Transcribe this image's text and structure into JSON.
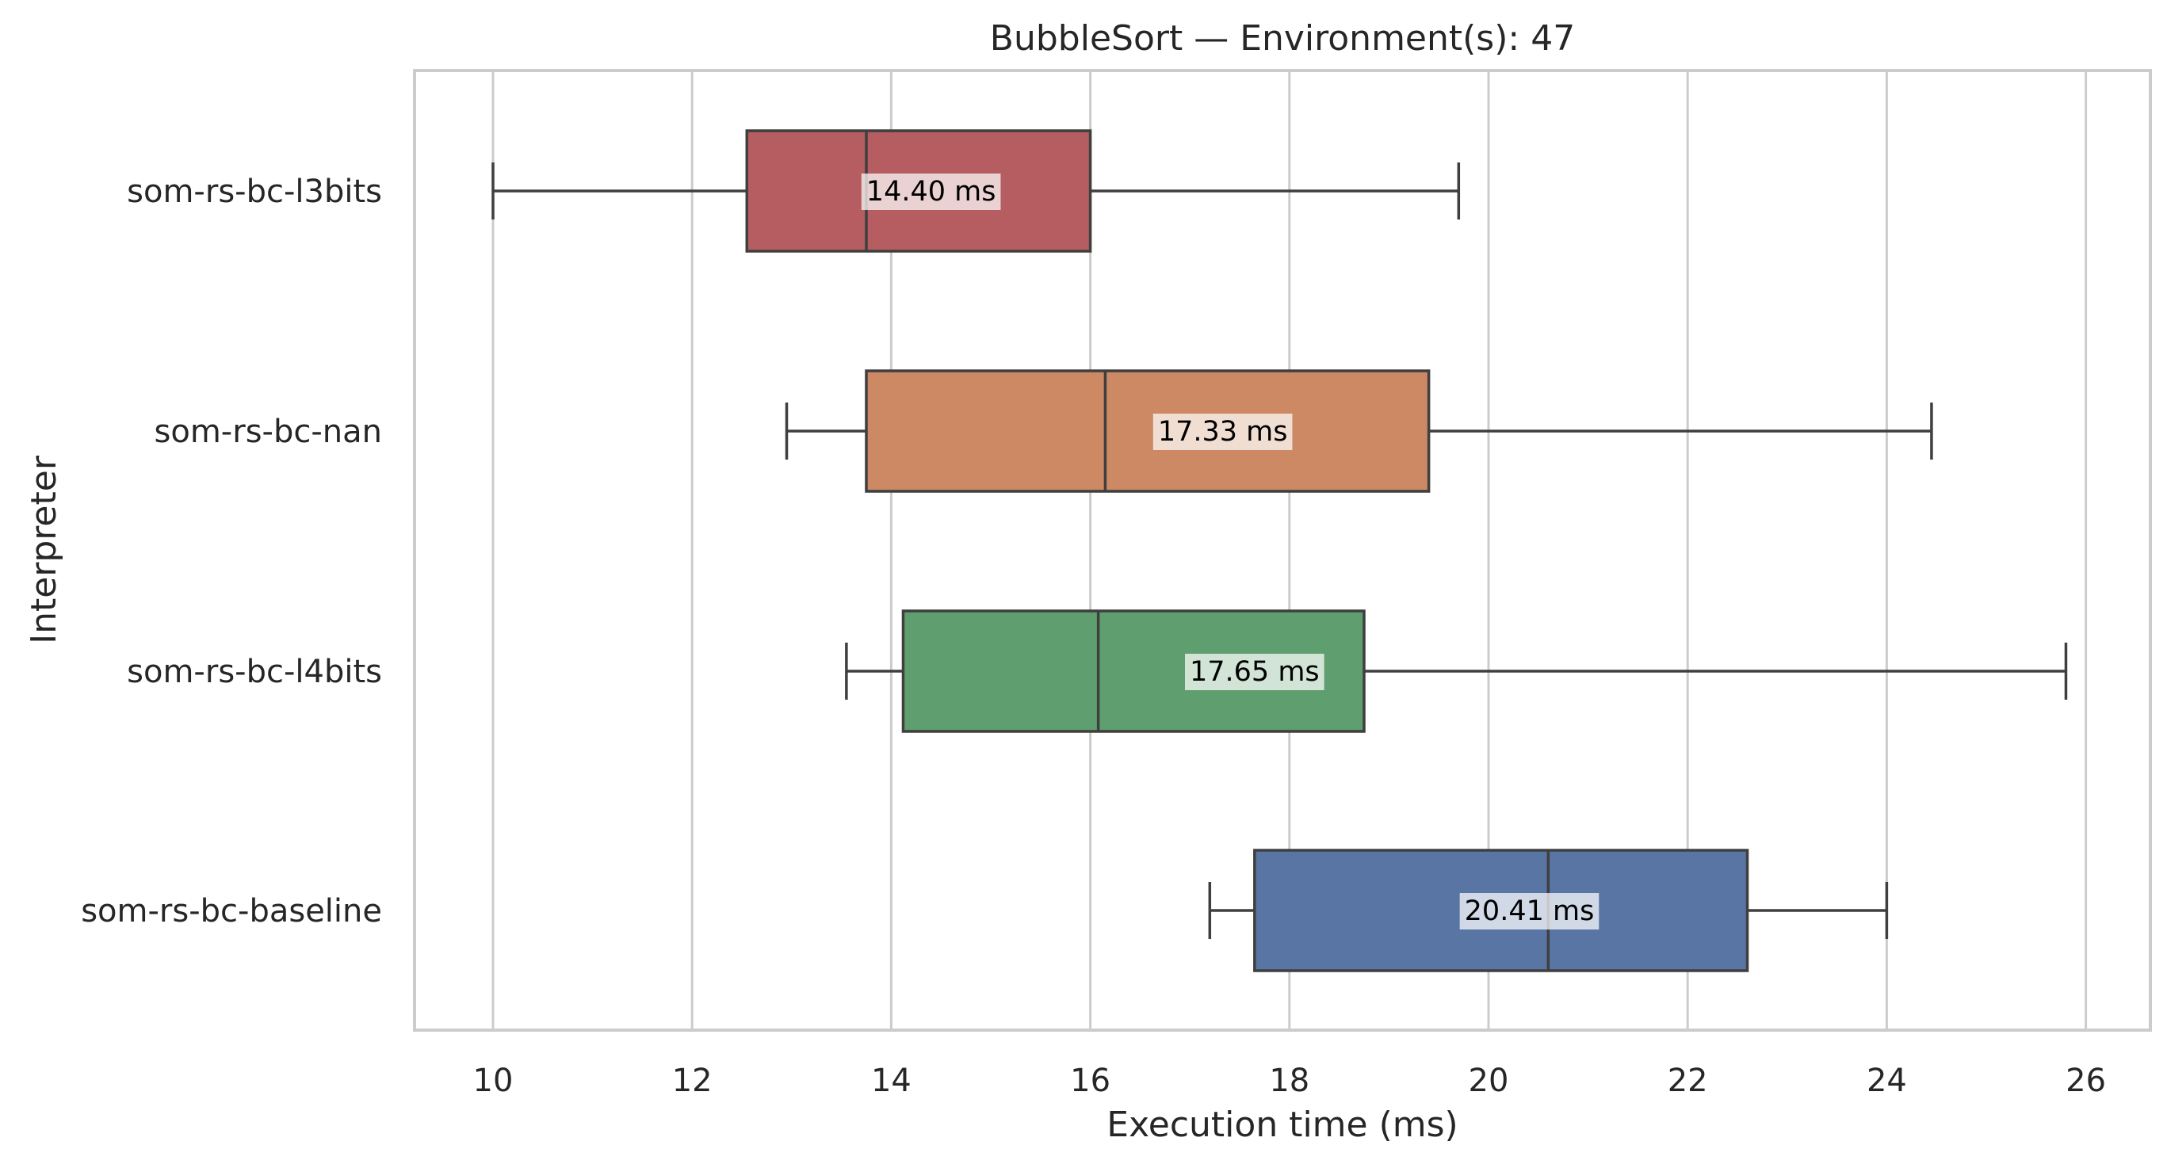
{
  "chart_data": {
    "type": "boxplot",
    "orientation": "horizontal",
    "title": "BubbleSort — Environment(s): 47",
    "xlabel": "Execution time (ms)",
    "ylabel": "Interpreter",
    "xlim": [
      9.2,
      26.6
    ],
    "xticks": [
      10,
      12,
      14,
      16,
      18,
      20,
      22,
      24,
      26
    ],
    "grid": "vertical",
    "series": [
      {
        "name": "som-rs-bc-l3bits",
        "color": "#b55d60",
        "whisker_low": 10.0,
        "q1": 12.55,
        "median": 13.75,
        "q3": 16.0,
        "whisker_high": 19.7,
        "mean_label": "14.40 ms",
        "mean": 14.4
      },
      {
        "name": "som-rs-bc-nan",
        "color": "#cc8963",
        "whisker_low": 12.95,
        "q1": 13.75,
        "median": 16.15,
        "q3": 19.4,
        "whisker_high": 24.45,
        "mean_label": "17.33 ms",
        "mean": 17.33
      },
      {
        "name": "som-rs-bc-l4bits",
        "color": "#5f9e6e",
        "whisker_low": 13.55,
        "q1": 14.12,
        "median": 16.08,
        "q3": 18.75,
        "whisker_high": 25.8,
        "mean_label": "17.65 ms",
        "mean": 17.65
      },
      {
        "name": "som-rs-bc-baseline",
        "color": "#5975a4",
        "whisker_low": 17.2,
        "q1": 17.65,
        "median": 20.6,
        "q3": 22.6,
        "whisker_high": 24.0,
        "mean_label": "20.41 ms",
        "mean": 20.41
      }
    ]
  }
}
